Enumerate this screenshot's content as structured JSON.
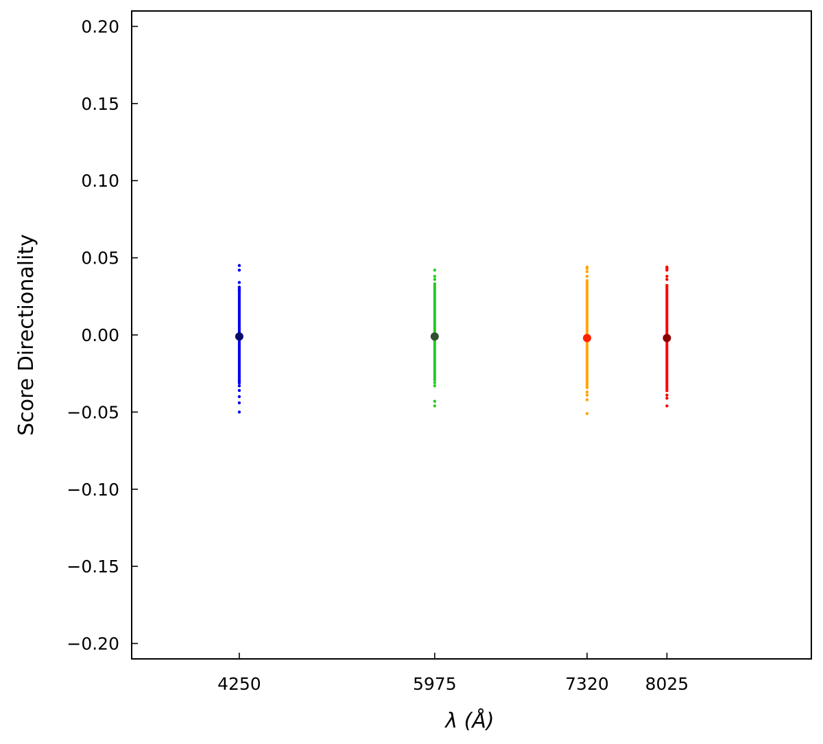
{
  "chart_data": {
    "type": "scatter",
    "title": "",
    "xlabel": "λ (Å)",
    "ylabel": "Score Directionality",
    "xlim": [
      3300,
      9300
    ],
    "ylim": [
      -0.21,
      0.21
    ],
    "x_ticks": [
      4250,
      5975,
      7320,
      8025
    ],
    "x_tick_labels": [
      "4250",
      "5975",
      "7320",
      "8025"
    ],
    "y_ticks": [
      -0.2,
      -0.15,
      -0.1,
      -0.05,
      0.0,
      0.05,
      0.1,
      0.15,
      0.2
    ],
    "y_tick_labels": [
      "−0.20",
      "−0.15",
      "−0.10",
      "−0.05",
      "0.00",
      "0.05",
      "0.10",
      "0.15",
      "0.20"
    ],
    "grid": false,
    "legend": "none",
    "series": [
      {
        "x": 4250,
        "color": "#0000ee",
        "mean_color": "#0a0a6a",
        "mean": -0.001,
        "core_range": [
          -0.032,
          0.031
        ],
        "points": [
          0.045,
          0.042,
          0.034,
          0.031,
          0.029,
          -0.03,
          -0.033,
          -0.036,
          -0.04,
          -0.044,
          -0.05
        ]
      },
      {
        "x": 5975,
        "color": "#22cc22",
        "mean_color": "#2f4f2f",
        "mean": -0.001,
        "core_range": [
          -0.03,
          0.034
        ],
        "points": [
          0.042,
          0.038,
          0.036,
          -0.031,
          -0.033,
          -0.043,
          -0.046
        ]
      },
      {
        "x": 7320,
        "color": "#ffa500",
        "mean_color": "#ff2200",
        "mean": -0.002,
        "core_range": [
          -0.035,
          0.036
        ],
        "points": [
          0.044,
          0.043,
          0.041,
          0.038,
          -0.037,
          -0.039,
          -0.042,
          -0.051
        ]
      },
      {
        "x": 8025,
        "color": "#ff0000",
        "mean_color": "#8b0000",
        "mean": -0.002,
        "core_range": [
          -0.037,
          0.033
        ],
        "points": [
          0.044,
          0.043,
          0.042,
          0.038,
          0.036,
          -0.039,
          -0.041,
          -0.046
        ]
      }
    ]
  }
}
